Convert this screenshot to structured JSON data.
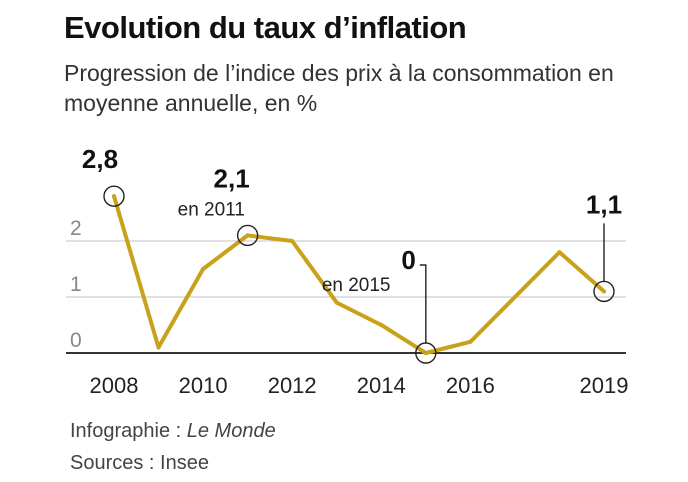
{
  "header": {
    "title": "Evolution du taux d’inflation",
    "subtitle": "Progression de l’indice des prix à la consommation en moyenne annuelle, en %"
  },
  "chart_data": {
    "type": "line",
    "title": "Evolution du taux d’inflation",
    "subtitle": "Progression de l’indice des prix à la consommation en moyenne annuelle, en %",
    "xlabel": "",
    "ylabel": "%",
    "x": [
      2008,
      2009,
      2010,
      2011,
      2012,
      2013,
      2014,
      2015,
      2016,
      2017,
      2018,
      2019
    ],
    "series": [
      {
        "name": "Inflation",
        "values": [
          2.8,
          0.1,
          1.5,
          2.1,
          2.0,
          0.9,
          0.5,
          0.0,
          0.2,
          null,
          1.8,
          1.1
        ],
        "color": "#c9a21a"
      }
    ],
    "ylim": [
      0,
      3
    ],
    "xlim": [
      2008,
      2019
    ],
    "y_ticks": [
      "0",
      "1",
      "2"
    ],
    "x_ticks": [
      "2008",
      "2010",
      "2012",
      "2014",
      "2016",
      "2019"
    ],
    "grid": true,
    "annotations": [
      {
        "year": 2008,
        "value_label": "2,8",
        "note": ""
      },
      {
        "year": 2011,
        "value_label": "2,1",
        "note": "en 2011"
      },
      {
        "year": 2015,
        "value_label": "0",
        "note": "en 2015"
      },
      {
        "year": 2019,
        "value_label": "1,1",
        "note": ""
      }
    ]
  },
  "footer": {
    "credit_prefix": "Infographie : ",
    "credit_source": "Le Monde",
    "sources": "Sources : Insee"
  }
}
